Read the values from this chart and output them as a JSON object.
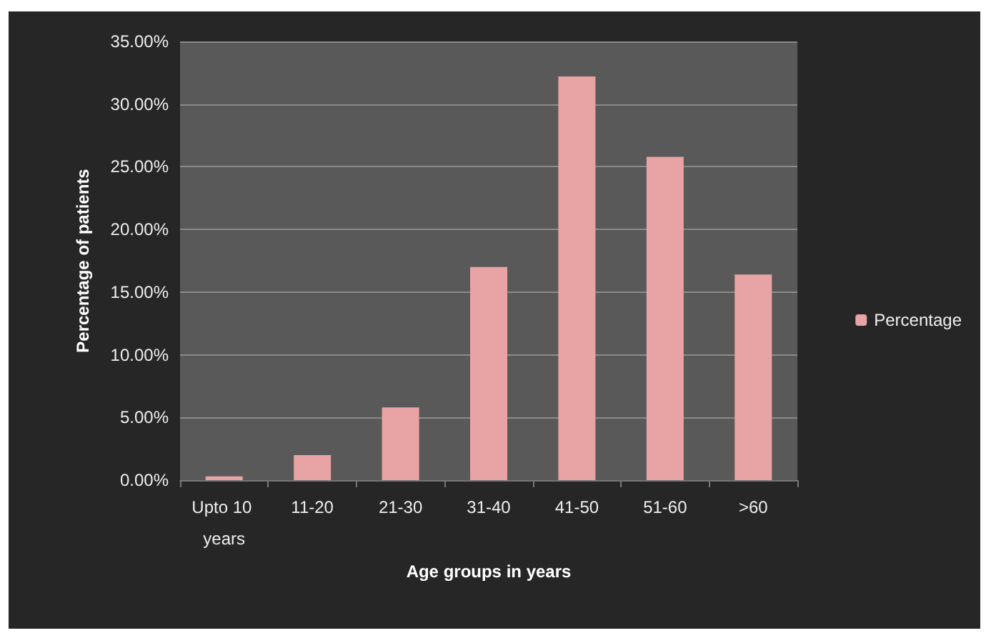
{
  "chart_data": {
    "type": "bar",
    "xlabel": "Age groups in years",
    "ylabel": "Percentage of patients",
    "categories": [
      "Upto 10 years",
      "11-20",
      "21-30",
      "31-40",
      "41-50",
      "51-60",
      ">60"
    ],
    "series": [
      {
        "name": "Percentage",
        "color": "#e8a4a4",
        "values": [
          0.3,
          2.0,
          5.8,
          17.0,
          32.2,
          25.8,
          16.4
        ]
      }
    ],
    "ylim": [
      0,
      35
    ],
    "yticks": [
      {
        "value": 0,
        "label": "0.00%"
      },
      {
        "value": 5,
        "label": "5.00%"
      },
      {
        "value": 10,
        "label": "10.00%"
      },
      {
        "value": 15,
        "label": "15.00%"
      },
      {
        "value": 20,
        "label": "20.00%"
      },
      {
        "value": 25,
        "label": "25.00%"
      },
      {
        "value": 30,
        "label": "30.00%"
      },
      {
        "value": 35,
        "label": "35.00%"
      }
    ],
    "grid": "y",
    "legend": "right"
  }
}
